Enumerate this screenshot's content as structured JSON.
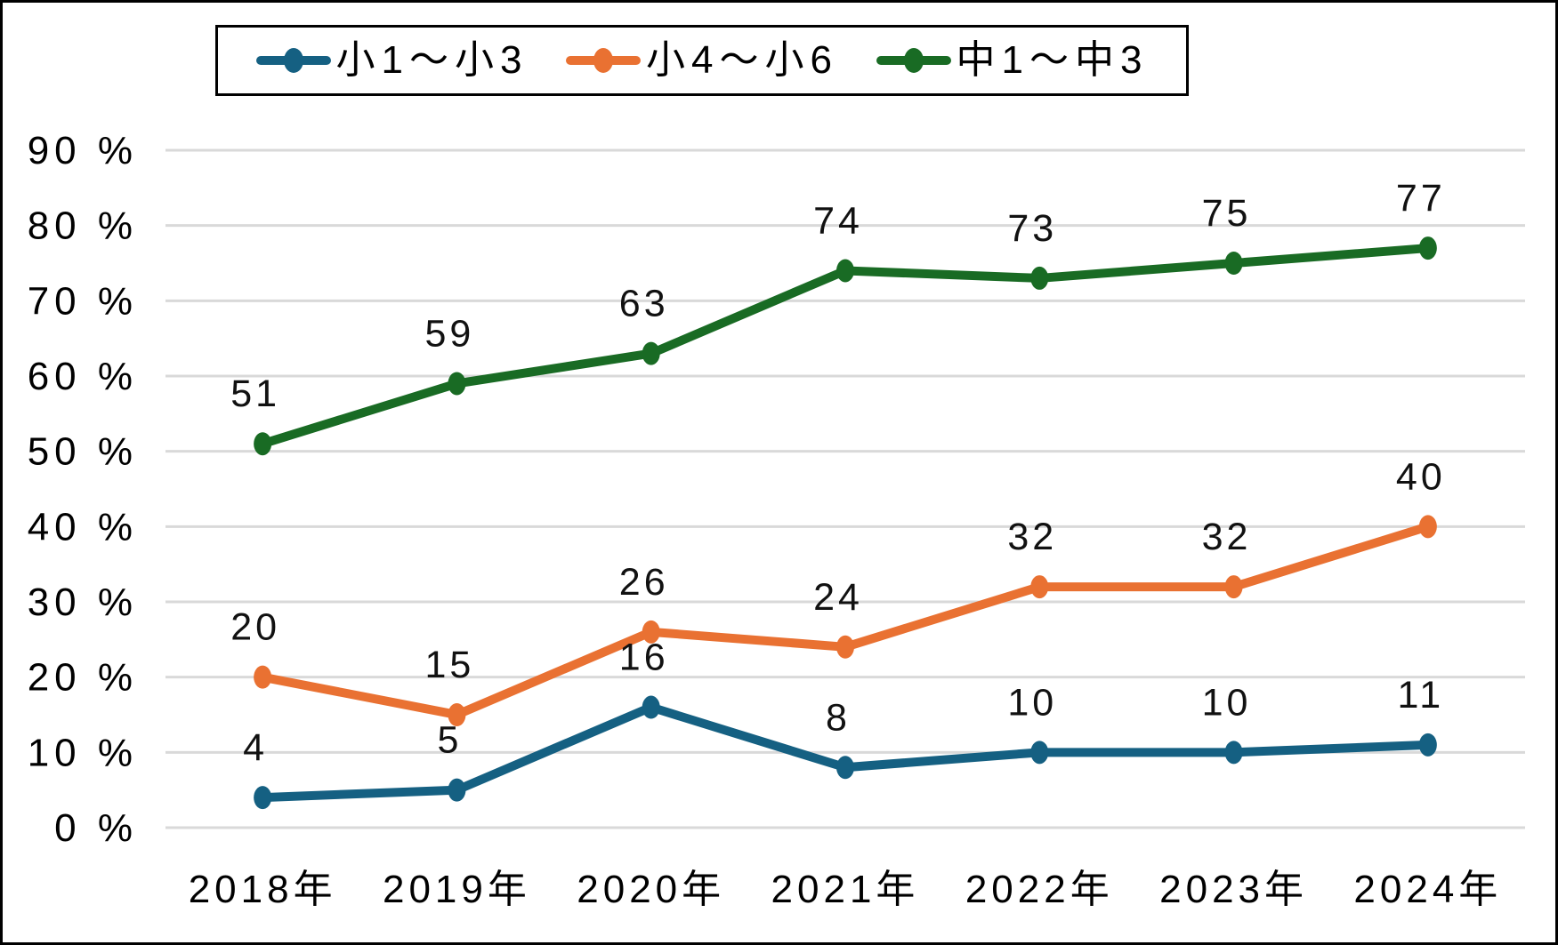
{
  "chart_data": {
    "type": "line",
    "categories": [
      "2018年",
      "2019年",
      "2020年",
      "2021年",
      "2022年",
      "2023年",
      "2024年"
    ],
    "series": [
      {
        "name": "小1～小3",
        "color": "#156082",
        "values": [
          4,
          5,
          16,
          8,
          10,
          10,
          11
        ]
      },
      {
        "name": "小4～小6",
        "color": "#E97132",
        "values": [
          20,
          15,
          26,
          24,
          32,
          32,
          40
        ]
      },
      {
        "name": "中1～中3",
        "color": "#196B24",
        "values": [
          51,
          59,
          63,
          74,
          73,
          75,
          77
        ]
      }
    ],
    "ylim": [
      0,
      90
    ],
    "y_ticks": [
      {
        "value": 0,
        "label": "0 %"
      },
      {
        "value": 10,
        "label": "10 %"
      },
      {
        "value": 20,
        "label": "20 %"
      },
      {
        "value": 30,
        "label": "30 %"
      },
      {
        "value": 40,
        "label": "40 %"
      },
      {
        "value": 50,
        "label": "50 %"
      },
      {
        "value": 60,
        "label": "60 %"
      },
      {
        "value": 70,
        "label": "70 %"
      },
      {
        "value": 80,
        "label": "80 %"
      },
      {
        "value": 90,
        "label": "90 %"
      }
    ],
    "grid": true,
    "gridline_color": "#d9d9d9",
    "legend_position": "top",
    "data_labels": true,
    "title": "",
    "xlabel": "",
    "ylabel": ""
  }
}
